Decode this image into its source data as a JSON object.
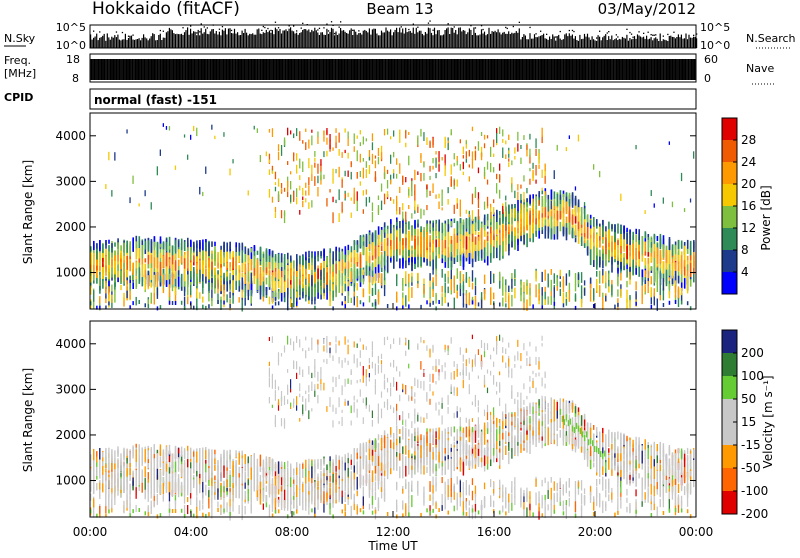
{
  "header": {
    "station": "Hokkaido (fitACF)",
    "beam": "Beam 13",
    "date": "03/May/2012"
  },
  "noise_panel": {
    "left_label": "N.Sky",
    "right_label": "N.Search",
    "ticks": [
      "10^5",
      "10^0"
    ],
    "right_ticks": [
      "10^5",
      "10^0"
    ]
  },
  "freq_panel": {
    "left_label_top": "Freq.",
    "left_label_unit": "[MHz]",
    "left_ticks": [
      "18",
      "8"
    ],
    "right_label": "Nave",
    "right_ticks": [
      "60",
      "0"
    ]
  },
  "cpid_panel": {
    "left_label": "CPID",
    "text": "normal (fast) -151"
  },
  "power_panel": {
    "ylabel": "Slant Range [km]",
    "yticks": [
      "4000",
      "3000",
      "2000",
      "1000"
    ],
    "colorbar_label": "Power [dB]",
    "colorbar_ticks": [
      "28",
      "24",
      "20",
      "16",
      "12",
      "8",
      "4"
    ],
    "colorbar_colors": [
      "#e00000",
      "#f05a00",
      "#ff9900",
      "#f5c800",
      "#7fbf40",
      "#2e8b57",
      "#1e3a8a",
      "#0000ff"
    ]
  },
  "velocity_panel": {
    "ylabel": "Slant Range [km]",
    "yticks": [
      "4000",
      "3000",
      "2000",
      "1000"
    ],
    "colorbar_label": "Velocity [m s⁻¹]",
    "colorbar_ticks": [
      "200",
      "100",
      "50",
      "15",
      "-15",
      "-50",
      "-100",
      "-200"
    ],
    "colorbar_colors": [
      "#1a237e",
      "#2e7d32",
      "#66cc33",
      "#c8c8c8",
      "#c8c8c8",
      "#ff9900",
      "#ff6600",
      "#e00000"
    ]
  },
  "xaxis": {
    "xlabel": "Time UT",
    "xticks": [
      "00:00",
      "04:00",
      "08:00",
      "12:00",
      "16:00",
      "20:00",
      "00:00"
    ]
  },
  "chart_data": {
    "type": "heatmap",
    "title": "Hokkaido (fitACF)",
    "subtitle": "Beam 13",
    "date": "03/May/2012",
    "xlabel": "Time UT",
    "x_range": [
      "00:00",
      "24:00"
    ],
    "ylabel": "Slant Range [km]",
    "ylim": [
      200,
      4500
    ],
    "panels": [
      {
        "name": "Power [dB]",
        "color_range": [
          0,
          30
        ],
        "colorbar_ticks": [
          4,
          8,
          12,
          16,
          20,
          24,
          28
        ],
        "echo_band_center_km": {
          "hours": [
            0,
            2,
            4,
            6,
            8,
            10,
            12,
            14,
            16,
            18,
            19,
            20,
            22,
            24
          ],
          "range_km": [
            1200,
            1300,
            1250,
            1150,
            900,
            1100,
            1700,
            1650,
            1850,
            2350,
            2300,
            1700,
            1400,
            1200
          ]
        }
      },
      {
        "name": "Velocity [m s⁻¹]",
        "color_range": [
          -250,
          250
        ],
        "colorbar_ticks": [
          200,
          100,
          50,
          15,
          -15,
          -50,
          -100,
          -200
        ]
      }
    ]
  }
}
